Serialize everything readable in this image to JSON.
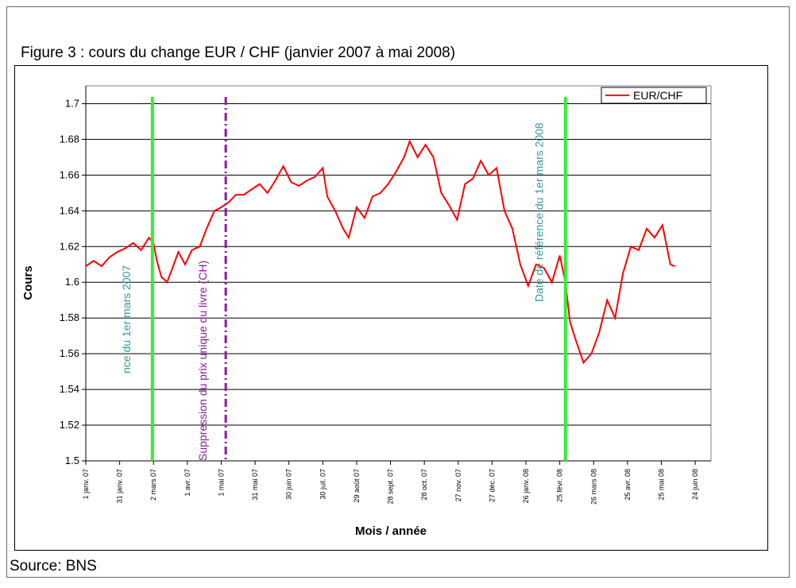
{
  "chart_data": {
    "type": "line",
    "title": "Figure 3 : cours du change EUR / CHF (janvier 2007 à mai 2008)",
    "source": "Source: BNS",
    "x_label": "Mois / année",
    "y_label": "Cours",
    "legend": "top-right",
    "grid": true,
    "xlim": [
      "2007-01-01",
      "2008-07-08"
    ],
    "ylim": [
      1.5,
      1.71
    ],
    "yticks": [
      1.5,
      1.52,
      1.54,
      1.56,
      1.58,
      1.6,
      1.62,
      1.64,
      1.66,
      1.68,
      1.7
    ],
    "xticks": [
      {
        "value": "2007-01-01",
        "label": "1 janv. 07"
      },
      {
        "value": "2007-01-31",
        "label": "31 janv. 07"
      },
      {
        "value": "2007-03-02",
        "label": "2 mars 07"
      },
      {
        "value": "2007-04-01",
        "label": "1 avr. 07"
      },
      {
        "value": "2007-05-01",
        "label": "1 mai 07"
      },
      {
        "value": "2007-05-31",
        "label": "31 mai 07"
      },
      {
        "value": "2007-06-30",
        "label": "30 juin 07"
      },
      {
        "value": "2007-07-30",
        "label": "30 juil. 07"
      },
      {
        "value": "2007-08-29",
        "label": "29 août 07"
      },
      {
        "value": "2007-09-28",
        "label": "28 sept. 07"
      },
      {
        "value": "2007-10-28",
        "label": "28 oct. 07"
      },
      {
        "value": "2007-11-27",
        "label": "27 nov. 07"
      },
      {
        "value": "2007-12-27",
        "label": "27 déc. 07"
      },
      {
        "value": "2008-01-26",
        "label": "26 janv. 08"
      },
      {
        "value": "2008-02-25",
        "label": "25 févr. 08"
      },
      {
        "value": "2008-03-26",
        "label": "26 mars 08"
      },
      {
        "value": "2008-04-25",
        "label": "25 avr. 08"
      },
      {
        "value": "2008-05-25",
        "label": "25 mai 08"
      },
      {
        "value": "2008-06-24",
        "label": "24 juin 08"
      }
    ],
    "x": [
      "2007-01-01",
      "2007-01-08",
      "2007-01-15",
      "2007-01-22",
      "2007-01-29",
      "2007-02-05",
      "2007-02-12",
      "2007-02-19",
      "2007-02-26",
      "2007-03-02",
      "2007-03-05",
      "2007-03-09",
      "2007-03-14",
      "2007-03-20",
      "2007-03-24",
      "2007-03-30",
      "2007-04-05",
      "2007-04-12",
      "2007-04-18",
      "2007-04-25",
      "2007-05-01",
      "2007-05-08",
      "2007-05-14",
      "2007-05-21",
      "2007-05-28",
      "2007-06-04",
      "2007-06-11",
      "2007-06-18",
      "2007-06-25",
      "2007-07-02",
      "2007-07-09",
      "2007-07-16",
      "2007-07-23",
      "2007-07-30",
      "2007-08-03",
      "2007-08-10",
      "2007-08-17",
      "2007-08-22",
      "2007-08-29",
      "2007-09-05",
      "2007-09-12",
      "2007-09-19",
      "2007-09-26",
      "2007-10-03",
      "2007-10-10",
      "2007-10-15",
      "2007-10-22",
      "2007-10-29",
      "2007-11-05",
      "2007-11-12",
      "2007-11-19",
      "2007-11-26",
      "2007-12-03",
      "2007-12-10",
      "2007-12-17",
      "2007-12-24",
      "2007-12-31",
      "2008-01-07",
      "2008-01-14",
      "2008-01-21",
      "2008-01-28",
      "2008-02-04",
      "2008-02-11",
      "2008-02-18",
      "2008-02-25",
      "2008-03-01",
      "2008-03-05",
      "2008-03-10",
      "2008-03-17",
      "2008-03-24",
      "2008-03-31",
      "2008-04-07",
      "2008-04-14",
      "2008-04-21",
      "2008-04-28",
      "2008-05-05",
      "2008-05-12",
      "2008-05-19",
      "2008-05-26",
      "2008-06-02",
      "2008-06-06"
    ],
    "series": [
      {
        "name": "EUR/CHF",
        "color": "#ff0000",
        "values": [
          1.609,
          1.612,
          1.609,
          1.614,
          1.617,
          1.619,
          1.622,
          1.618,
          1.625,
          1.622,
          1.612,
          1.603,
          1.6,
          1.61,
          1.617,
          1.61,
          1.618,
          1.62,
          1.63,
          1.64,
          1.642,
          1.645,
          1.649,
          1.649,
          1.652,
          1.655,
          1.65,
          1.657,
          1.665,
          1.656,
          1.654,
          1.657,
          1.659,
          1.664,
          1.648,
          1.64,
          1.63,
          1.625,
          1.642,
          1.636,
          1.648,
          1.65,
          1.655,
          1.662,
          1.67,
          1.679,
          1.67,
          1.677,
          1.67,
          1.65,
          1.643,
          1.635,
          1.655,
          1.658,
          1.668,
          1.66,
          1.664,
          1.64,
          1.63,
          1.61,
          1.598,
          1.61,
          1.608,
          1.6,
          1.615,
          1.6,
          1.578,
          1.568,
          1.555,
          1.56,
          1.572,
          1.59,
          1.58,
          1.605,
          1.62,
          1.618,
          1.63,
          1.625,
          1.632,
          1.61,
          1.609
        ]
      }
    ],
    "events": [
      {
        "x": "2007-03-01",
        "label": "nce du 1er mars 2007",
        "color": "#33ee33",
        "label_color": "#339999"
      },
      {
        "x": "2007-05-05",
        "label": "Suppression du prix unique du livre (CH)",
        "color": "#8b1a9b",
        "label_color": "#8b1a9b"
      },
      {
        "x": "2008-03-01",
        "label": "Date de référence du 1er mars 2008",
        "color": "#33ee33",
        "label_color": "#339999"
      }
    ]
  }
}
